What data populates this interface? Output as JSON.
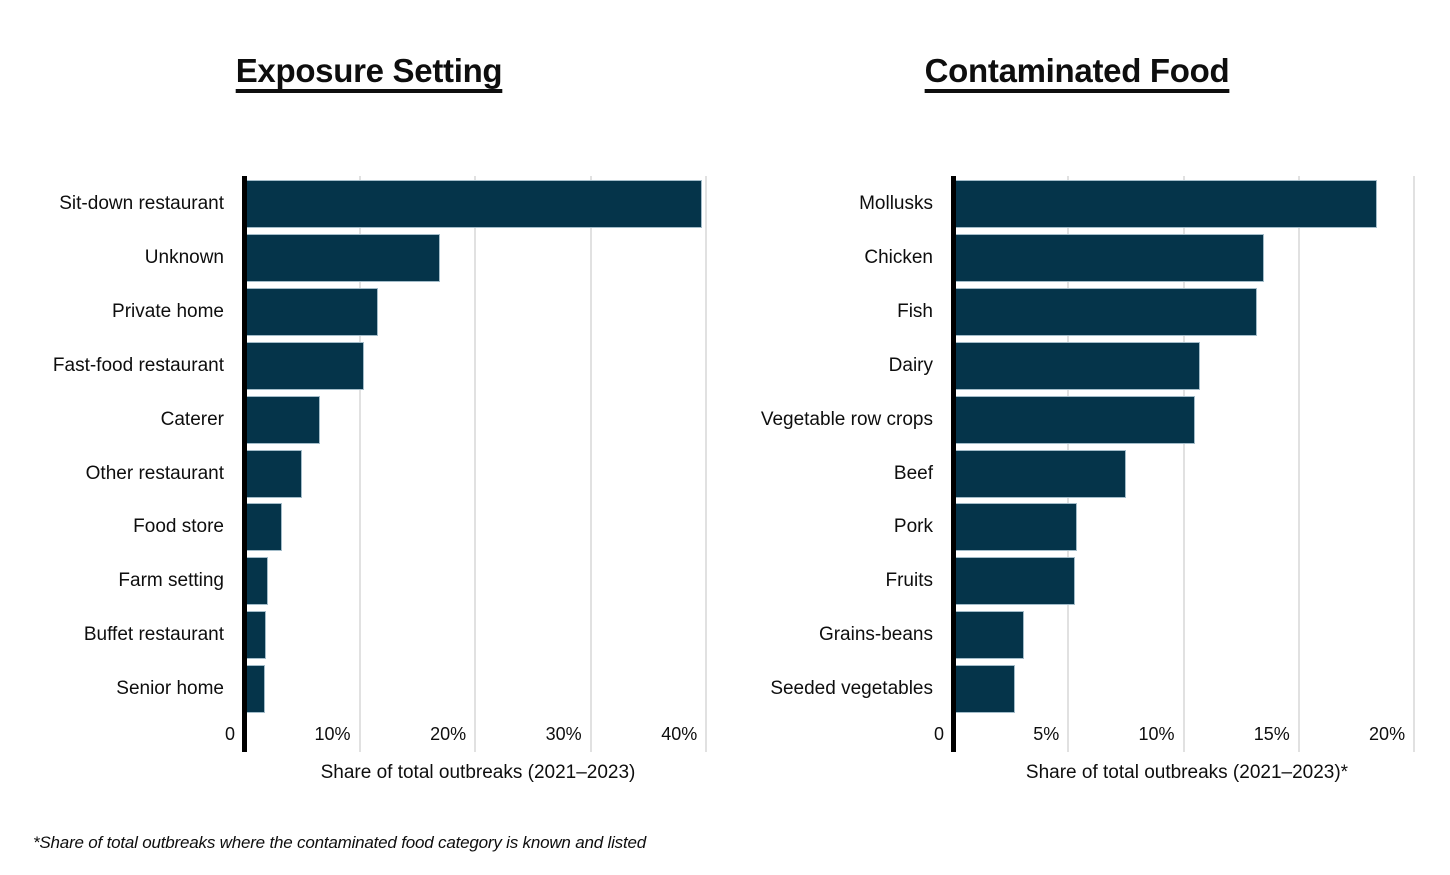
{
  "page": {
    "footnote": "*Share of total outbreaks where the contaminated food category is known and listed"
  },
  "colors": {
    "bar_fill": "#05344a",
    "bar_stroke": "#a3bcc9",
    "gridline": "#e1e1e1",
    "axis_line": "#000000",
    "text": "#0e0e0e",
    "background": "#ffffff"
  },
  "chart_data": [
    {
      "type": "bar",
      "orientation": "horizontal",
      "title": "Exposure Setting",
      "xlabel": "Share of total outbreaks (2021–2023)",
      "categories": [
        "Sit-down restaurant",
        "Unknown",
        "Private home",
        "Fast-food restaurant",
        "Caterer",
        "Other restaurant",
        "Food store",
        "Farm setting",
        "Buffet restaurant",
        "Senior home"
      ],
      "values": [
        39.6,
        17.0,
        11.6,
        10.4,
        6.6,
        5.0,
        3.3,
        2.1,
        1.9,
        1.8
      ],
      "xlim": [
        0,
        40.5
      ],
      "grid": true,
      "legend": "none",
      "ticks": [
        {
          "value": 0,
          "label": "0"
        },
        {
          "value": 10,
          "label": "10%"
        },
        {
          "value": 20,
          "label": "20%"
        },
        {
          "value": 30,
          "label": "30%"
        },
        {
          "value": 40,
          "label": "40%"
        }
      ]
    },
    {
      "type": "bar",
      "orientation": "horizontal",
      "title": "Contaminated Food",
      "xlabel": "Share of total outbreaks (2021–2023)*",
      "categories": [
        "Mollusks",
        "Chicken",
        "Fish",
        "Dairy",
        "Vegetable row crops",
        "Beef",
        "Pork",
        "Fruits",
        "Grains-beans",
        "Seeded vegetables"
      ],
      "values": [
        18.4,
        13.5,
        13.2,
        10.7,
        10.5,
        7.5,
        5.4,
        5.3,
        3.1,
        2.7
      ],
      "xlim": [
        0,
        20.3
      ],
      "grid": true,
      "legend": "none",
      "ticks": [
        {
          "value": 0,
          "label": "0"
        },
        {
          "value": 5,
          "label": "5%"
        },
        {
          "value": 10,
          "label": "10%"
        },
        {
          "value": 15,
          "label": "15%"
        },
        {
          "value": 20,
          "label": "20%"
        }
      ]
    }
  ]
}
